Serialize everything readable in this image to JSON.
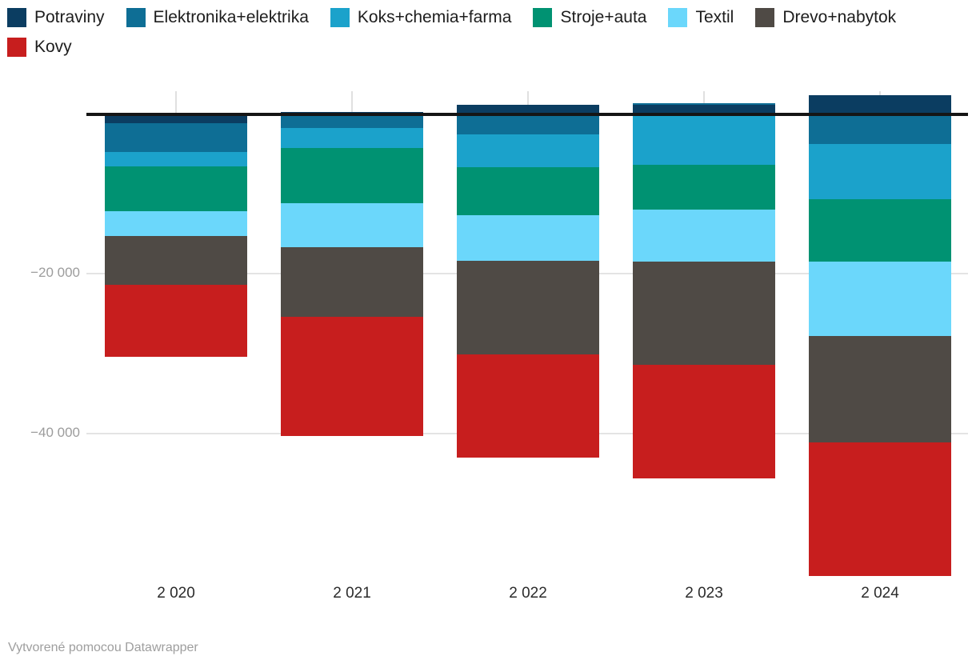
{
  "chart_data": {
    "type": "bar",
    "stacked": true,
    "title": "",
    "xlabel": "",
    "ylabel": "",
    "categories": [
      "2 020",
      "2 021",
      "2 022",
      "2 023",
      "2 024"
    ],
    "series": [
      {
        "name": "Potraviny",
        "color": "#0b3d61",
        "values": [
          -1200,
          200,
          1100,
          1100,
          2300
        ]
      },
      {
        "name": "Elektronika+elektrika",
        "color": "#0e6e95",
        "values": [
          -3600,
          -1800,
          -2600,
          200,
          -3800
        ]
      },
      {
        "name": "Koks+chemia+farma",
        "color": "#1ba2cb",
        "values": [
          -1800,
          -2500,
          -4100,
          -6400,
          -6900
        ]
      },
      {
        "name": "Stroje+auta",
        "color": "#009272",
        "values": [
          -5600,
          -6900,
          -6000,
          -5600,
          -7800
        ]
      },
      {
        "name": "Textil",
        "color": "#6bd7fb",
        "values": [
          -3100,
          -5500,
          -5700,
          -6500,
          -9300
        ]
      },
      {
        "name": "Drevo+nabytok",
        "color": "#4f4a45",
        "values": [
          -6100,
          -8700,
          -11700,
          -12900,
          -13300
        ]
      },
      {
        "name": "Kovy",
        "color": "#c71e1e",
        "values": [
          -9000,
          -14900,
          -12900,
          -14200,
          -16700
        ]
      }
    ],
    "yticks": [
      {
        "value": -20000,
        "label": "−20 000"
      },
      {
        "value": -40000,
        "label": "−40 000"
      }
    ],
    "ylim": [
      -58000,
      3000
    ],
    "grid": "horizontal",
    "legend_position": "top"
  },
  "footer": {
    "credit": "Vytvorené pomocou Datawrapper"
  }
}
